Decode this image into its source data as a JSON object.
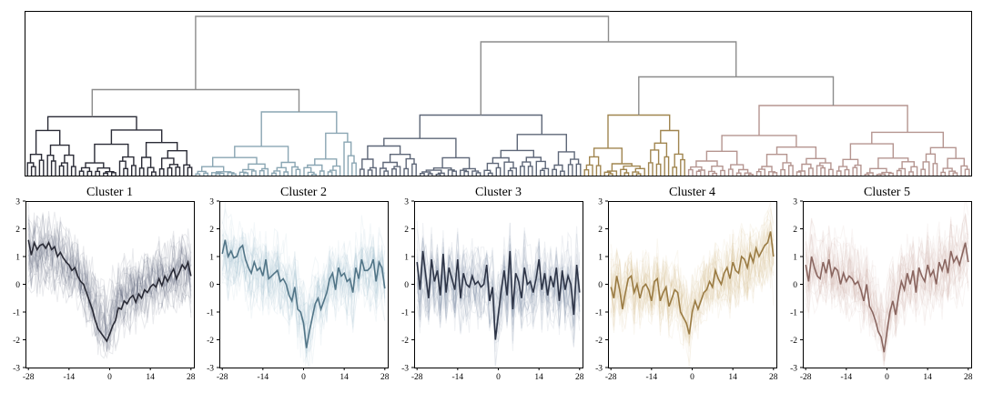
{
  "dendrogram": {
    "link_color_above": "#8c8c8c",
    "clusters": [
      {
        "leaves": 42,
        "color": "#2a2b36"
      },
      {
        "leaves": 41,
        "color": "#8aa6b3"
      },
      {
        "leaves": 56,
        "color": "#5e6778"
      },
      {
        "leaves": 26,
        "color": "#a0854f"
      },
      {
        "leaves": 71,
        "color": "#b59590"
      }
    ],
    "merge_heights": {
      "top": 1.0,
      "left": 0.54,
      "right": 0.84,
      "right_inner": 0.62
    },
    "cluster_heights": [
      0.37,
      0.4,
      0.38,
      0.38,
      0.44
    ]
  },
  "chart_data": [
    {
      "type": "line",
      "title": "Cluster 1",
      "color": "#2a2b36",
      "band_color": "#3b3e58",
      "xlim": [
        -29,
        29
      ],
      "ylim": [
        -3,
        3
      ],
      "xticks": [
        -28,
        -14,
        0,
        14,
        28
      ],
      "yticks": [
        -3,
        -2,
        -1,
        0,
        1,
        2,
        3
      ],
      "x_start": -28,
      "x_step": 1,
      "series": [
        {
          "values": [
            1.6,
            1.05,
            1.5,
            1.25,
            1.4,
            1.45,
            1.3,
            1.5,
            1.25,
            1.35,
            1.0,
            1.15,
            0.95,
            0.8,
            0.7,
            0.5,
            0.6,
            0.3,
            0.1,
            0.0,
            -0.3,
            -0.6,
            -0.9,
            -1.3,
            -1.6,
            -1.75,
            -1.9,
            -2.05,
            -1.8,
            -1.5,
            -1.3,
            -0.85,
            -0.9,
            -0.6,
            -0.7,
            -0.5,
            -0.4,
            -0.65,
            -0.35,
            -0.5,
            -0.2,
            -0.3,
            -0.1,
            0.0,
            -0.1,
            0.2,
            -0.05,
            0.3,
            0.1,
            0.35,
            0.55,
            0.2,
            0.45,
            0.7,
            0.55,
            0.8,
            0.3
          ]
        }
      ]
    },
    {
      "type": "line",
      "title": "Cluster 2",
      "color": "#527587",
      "band_color": "#93b5c6",
      "xlim": [
        -29,
        29
      ],
      "ylim": [
        -3,
        3
      ],
      "xticks": [
        -28,
        -14,
        0,
        14,
        28
      ],
      "yticks": [
        -3,
        -2,
        -1,
        0,
        1,
        2,
        3
      ],
      "x_start": -28,
      "x_step": 1,
      "series": [
        {
          "values": [
            1.1,
            1.6,
            1.0,
            1.2,
            0.95,
            1.0,
            1.3,
            1.4,
            0.9,
            0.6,
            0.4,
            0.8,
            0.5,
            0.6,
            0.3,
            0.9,
            0.2,
            0.3,
            0.4,
            0.5,
            0.1,
            0.2,
            0.0,
            -0.4,
            -0.6,
            -0.1,
            -0.9,
            -1.0,
            -1.4,
            -2.3,
            -1.7,
            -1.2,
            -0.7,
            -0.5,
            -0.9,
            -0.6,
            -0.3,
            0.2,
            0.4,
            -0.2,
            0.6,
            0.3,
            0.4,
            0.1,
            0.2,
            -0.3,
            0.6,
            0.2,
            0.9,
            0.5,
            0.5,
            0.6,
            0.9,
            0.1,
            0.8,
            0.6,
            -0.15
          ]
        }
      ]
    },
    {
      "type": "line",
      "title": "Cluster 3",
      "color": "#2e3547",
      "band_color": "#6f7c99",
      "xlim": [
        -29,
        29
      ],
      "ylim": [
        -3,
        3
      ],
      "xticks": [
        -28,
        -14,
        0,
        14,
        28
      ],
      "yticks": [
        -3,
        -2,
        -1,
        0,
        1,
        2,
        3
      ],
      "x_start": -28,
      "x_step": 1,
      "series": [
        {
          "values": [
            0.8,
            -0.2,
            1.2,
            0.3,
            -0.5,
            0.9,
            0.1,
            0.5,
            -0.4,
            1.1,
            -0.3,
            0.6,
            0.2,
            -0.2,
            0.9,
            -0.5,
            0.4,
            0.0,
            -0.1,
            0.3,
            0.0,
            0.1,
            -0.1,
            0.0,
            0.7,
            -0.6,
            -0.1,
            -2.0,
            -1.1,
            -0.2,
            0.5,
            -0.4,
            1.2,
            -0.9,
            0.4,
            0.1,
            -0.5,
            0.6,
            0.0,
            0.1,
            -0.3,
            0.2,
            0.9,
            -0.2,
            0.4,
            -0.4,
            0.3,
            -0.1,
            0.6,
            -0.6,
            0.5,
            -0.2,
            0.3,
            0.0,
            -1.1,
            0.7,
            -0.3
          ]
        }
      ]
    },
    {
      "type": "line",
      "title": "Cluster 4",
      "color": "#9a7b43",
      "band_color": "#cfb27e",
      "xlim": [
        -29,
        29
      ],
      "ylim": [
        -3,
        3
      ],
      "xticks": [
        -28,
        -14,
        0,
        14,
        28
      ],
      "yticks": [
        -3,
        -2,
        -1,
        0,
        1,
        2,
        3
      ],
      "x_start": -28,
      "x_step": 1,
      "series": [
        {
          "values": [
            -0.1,
            -0.5,
            0.3,
            -0.2,
            -0.9,
            -0.3,
            0.2,
            0.3,
            -0.3,
            0.0,
            -0.5,
            -0.1,
            0.0,
            -0.2,
            -0.6,
            0.1,
            0.2,
            -0.6,
            -0.3,
            -0.1,
            -0.8,
            -0.5,
            -0.2,
            -0.3,
            -1.0,
            -1.2,
            -1.4,
            -1.8,
            -1.0,
            -0.6,
            -0.9,
            -0.6,
            -0.3,
            -0.2,
            0.1,
            -0.1,
            0.5,
            0.2,
            0.0,
            0.4,
            0.6,
            0.2,
            0.8,
            0.5,
            0.4,
            1.0,
            0.9,
            0.6,
            1.1,
            0.8,
            1.3,
            1.0,
            1.2,
            1.4,
            1.5,
            1.9,
            1.0
          ]
        }
      ]
    },
    {
      "type": "line",
      "title": "Cluster 5",
      "color": "#8a6660",
      "band_color": "#c8a49d",
      "xlim": [
        -29,
        29
      ],
      "ylim": [
        -3,
        3
      ],
      "xticks": [
        -28,
        -14,
        0,
        14,
        28
      ],
      "yticks": [
        -3,
        -2,
        -1,
        0,
        1,
        2,
        3
      ],
      "x_start": -28,
      "x_step": 1,
      "series": [
        {
          "values": [
            0.7,
            0.1,
            1.0,
            0.6,
            0.3,
            0.2,
            0.8,
            0.4,
            0.9,
            0.3,
            0.6,
            0.5,
            0.0,
            0.4,
            0.1,
            0.3,
            0.2,
            0.0,
            0.1,
            -0.2,
            -0.6,
            0.0,
            -0.8,
            -1.0,
            -1.3,
            -1.7,
            -1.9,
            -2.45,
            -1.7,
            -1.0,
            -0.6,
            -1.1,
            -0.4,
            0.1,
            -0.2,
            0.4,
            0.0,
            0.5,
            -0.3,
            0.6,
            0.3,
            0.1,
            0.7,
            0.3,
            0.5,
            0.0,
            0.8,
            0.5,
            0.9,
            0.4,
            1.2,
            0.8,
            1.0,
            0.7,
            1.1,
            1.5,
            0.8
          ]
        }
      ]
    }
  ]
}
